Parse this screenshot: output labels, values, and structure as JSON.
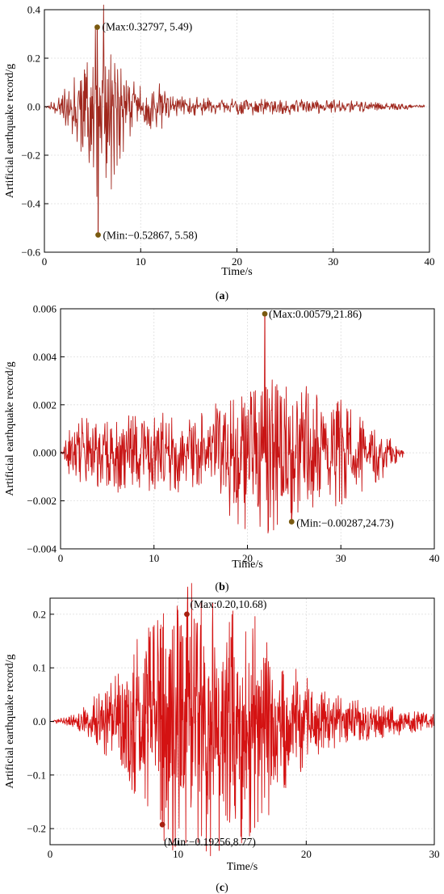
{
  "chart_data": [
    {
      "id": "a",
      "type": "line",
      "caption_letter": "a",
      "xlabel": "Time/s",
      "ylabel": "Artificial earthquake record/g",
      "xlim": [
        0,
        40
      ],
      "ylim": [
        -0.6,
        0.4
      ],
      "xticks": [
        0,
        10,
        20,
        30,
        40
      ],
      "yticks": [
        -0.6,
        -0.4,
        -0.2,
        0.0,
        0.2,
        0.4
      ],
      "ytick_labels": [
        "−0.6",
        "−0.4",
        "−0.2",
        "0.0",
        "0.2",
        "0.4"
      ],
      "grid": true,
      "line_color": "#a0281e",
      "marker_color": "#7a5a10",
      "signal": {
        "duration": 39.5,
        "dt": 0.05,
        "seed": 11,
        "envelope": [
          [
            0,
            0.0
          ],
          [
            1.5,
            0.03
          ],
          [
            2.5,
            0.08
          ],
          [
            3.5,
            0.12
          ],
          [
            4.5,
            0.18
          ],
          [
            5.5,
            0.3
          ],
          [
            6.5,
            0.28
          ],
          [
            7.5,
            0.2
          ],
          [
            8.5,
            0.1
          ],
          [
            10,
            0.06
          ],
          [
            12.5,
            0.07
          ],
          [
            13,
            0.03
          ],
          [
            20,
            0.025
          ],
          [
            30,
            0.02
          ],
          [
            39.5,
            0.005
          ]
        ]
      },
      "max_point": {
        "x": 5.49,
        "y": 0.32797,
        "label": "(Max:0.32797, 5.49)"
      },
      "min_point": {
        "x": 5.58,
        "y": -0.52867,
        "label": "(Min:−0.52867, 5.58)"
      }
    },
    {
      "id": "b",
      "type": "line",
      "caption_letter": "b",
      "xlabel": "Time/s",
      "ylabel": "Artificial earthquake record/g",
      "xlim": [
        0,
        40
      ],
      "ylim": [
        -0.004,
        0.006
      ],
      "xticks": [
        0,
        10,
        20,
        30,
        40
      ],
      "yticks": [
        -0.004,
        -0.002,
        0.0,
        0.002,
        0.004,
        0.006
      ],
      "ytick_labels": [
        "−0.004",
        "−0.002",
        "0.000",
        "0.002",
        "0.004",
        "0.006"
      ],
      "grid": true,
      "line_color": "#c81414",
      "marker_color": "#7a5a10",
      "signal": {
        "duration": 36.8,
        "dt": 0.05,
        "seed": 23,
        "envelope": [
          [
            0,
            0.0
          ],
          [
            0.8,
            0.0006
          ],
          [
            2,
            0.0012
          ],
          [
            10,
            0.0011
          ],
          [
            16,
            0.0012
          ],
          [
            18,
            0.0018
          ],
          [
            20,
            0.0022
          ],
          [
            24,
            0.0024
          ],
          [
            28,
            0.0018
          ],
          [
            32,
            0.0012
          ],
          [
            35,
            0.0006
          ],
          [
            36.8,
            0.0001
          ]
        ]
      },
      "max_point": {
        "x": 21.86,
        "y": 0.00579,
        "label": "(Max:0.00579,21.86)"
      },
      "min_point": {
        "x": 24.73,
        "y": -0.00287,
        "label": "(Min:−0.00287,24.73)"
      }
    },
    {
      "id": "c",
      "type": "line",
      "caption_letter": "c",
      "xlabel": "Time/s",
      "ylabel": "Artificial earthquake record/g",
      "xlim": [
        0,
        30
      ],
      "ylim": [
        -0.23,
        0.23
      ],
      "xticks": [
        0,
        10,
        20,
        30
      ],
      "yticks": [
        -0.2,
        -0.1,
        0.0,
        0.1,
        0.2
      ],
      "ytick_labels": [
        "−0.2",
        "−0.1",
        "0.0",
        "0.1",
        "0.2"
      ],
      "grid": true,
      "line_color": "#d41212",
      "marker_color": "#a82010",
      "signal": {
        "duration": 30,
        "dt": 0.025,
        "seed": 37,
        "envelope": [
          [
            0,
            0.0
          ],
          [
            2,
            0.01
          ],
          [
            4,
            0.04
          ],
          [
            6,
            0.09
          ],
          [
            8,
            0.14
          ],
          [
            10,
            0.17
          ],
          [
            12,
            0.18
          ],
          [
            14,
            0.17
          ],
          [
            16,
            0.14
          ],
          [
            18,
            0.1
          ],
          [
            20,
            0.06
          ],
          [
            22,
            0.035
          ],
          [
            25,
            0.025
          ],
          [
            30,
            0.01
          ]
        ]
      },
      "max_point": {
        "x": 10.68,
        "y": 0.2,
        "label": "(Max:0.20,10.68)"
      },
      "min_point": {
        "x": 8.77,
        "y": -0.19256,
        "label": "(Min:−0.19256,8.77)"
      }
    }
  ]
}
